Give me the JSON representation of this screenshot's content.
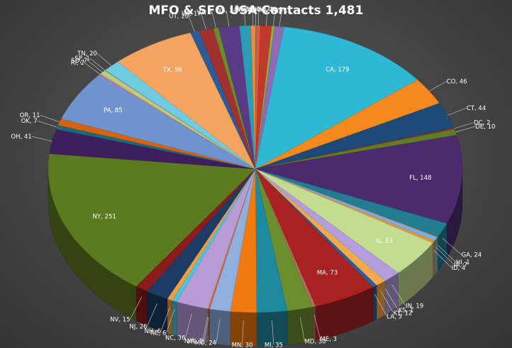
{
  "chart_data": {
    "type": "pie",
    "title": "MFO & SFO USA Contacts 1,481",
    "three_d": true,
    "start": "top",
    "direction": "clockwise",
    "label_format": "{name}, {value}",
    "slices": [
      {
        "name": "Wyoming",
        "value": 1,
        "color": "#4a86c8"
      },
      {
        "name": "AK",
        "value": 5,
        "color": "#e0593a"
      },
      {
        "name": "AL",
        "value": 13,
        "color": "#c0392b"
      },
      {
        "name": "AR",
        "value": 3,
        "color": "#8db33e"
      },
      {
        "name": "AZ",
        "value": 11,
        "color": "#8e6bb5"
      },
      {
        "name": "CA",
        "value": 179,
        "color": "#2fb8d4"
      },
      {
        "name": "CO",
        "value": 46,
        "color": "#f2891e"
      },
      {
        "name": "CT",
        "value": 44,
        "color": "#1e4a7a"
      },
      {
        "name": "DC",
        "value": 2,
        "color": "#9b2b2b"
      },
      {
        "name": "DE",
        "value": 10,
        "color": "#5e7d25"
      },
      {
        "name": "FL",
        "value": 148,
        "color": "#4b2a6e"
      },
      {
        "name": "GA",
        "value": 24,
        "color": "#217d8f"
      },
      {
        "name": "HI",
        "value": 1,
        "color": "#d06a1c"
      },
      {
        "name": "IA",
        "value": 7,
        "color": "#7aaee0"
      },
      {
        "name": "ID",
        "value": 4,
        "color": "#e8943c"
      },
      {
        "name": "IL",
        "value": 63,
        "color": "#c3dc8f"
      },
      {
        "name": "IN",
        "value": 19,
        "color": "#b39ddb"
      },
      {
        "name": "KS",
        "value": 1,
        "color": "#7fd4e8"
      },
      {
        "name": "KY",
        "value": 12,
        "color": "#f7a94a"
      },
      {
        "name": "LA",
        "value": 5,
        "color": "#2a5f9e"
      },
      {
        "name": "MA",
        "value": 73,
        "color": "#a82222"
      },
      {
        "name": "ME",
        "value": 3,
        "color": "#c26666"
      },
      {
        "name": "MD",
        "value": 30,
        "color": "#6c8e2e"
      },
      {
        "name": "MI",
        "value": 35,
        "color": "#1f8a9e"
      },
      {
        "name": "MN",
        "value": 30,
        "color": "#f07a10"
      },
      {
        "name": "MO",
        "value": 24,
        "color": "#8fb0dd"
      },
      {
        "name": "MS",
        "value": 2,
        "color": "#d9534f"
      },
      {
        "name": "N/A",
        "value": 1,
        "color": "#b5d16a"
      },
      {
        "name": "NC",
        "value": 36,
        "color": "#b79ad6"
      },
      {
        "name": "NE",
        "value": 6,
        "color": "#52c0d8"
      },
      {
        "name": "NH",
        "value": 6,
        "color": "#f0a040"
      },
      {
        "name": "NJ",
        "value": 26,
        "color": "#1c3c66"
      },
      {
        "name": "NV",
        "value": 15,
        "color": "#8a1c1c"
      },
      {
        "name": "NY",
        "value": 251,
        "color": "#5c7a1f"
      },
      {
        "name": "OH",
        "value": 41,
        "color": "#3e1f5e"
      },
      {
        "name": "OK",
        "value": 7,
        "color": "#1b6a7c"
      },
      {
        "name": "OR",
        "value": 11,
        "color": "#d6620f"
      },
      {
        "name": "PA",
        "value": 85,
        "color": "#6e93cf"
      },
      {
        "name": "RI",
        "value": 2,
        "color": "#e87a7a"
      },
      {
        "name": "SD",
        "value": 7,
        "color": "#b6cf7d"
      },
      {
        "name": "SP",
        "value": 1,
        "color": "#a58cc9"
      },
      {
        "name": "TN",
        "value": 20,
        "color": "#6fcbe0"
      },
      {
        "name": "TX",
        "value": 96,
        "color": "#f4a461"
      },
      {
        "name": "UT",
        "value": 10,
        "color": "#2b5c99"
      },
      {
        "name": "VA",
        "value": 17,
        "color": "#a33030"
      },
      {
        "name": "VT",
        "value": 6,
        "color": "#6a8c2a"
      },
      {
        "name": "WA",
        "value": 24,
        "color": "#5b3a85"
      },
      {
        "name": "WI",
        "value": 13,
        "color": "#2a9db4"
      },
      {
        "name": "WY",
        "value": 5,
        "color": "#f08c30"
      }
    ]
  }
}
